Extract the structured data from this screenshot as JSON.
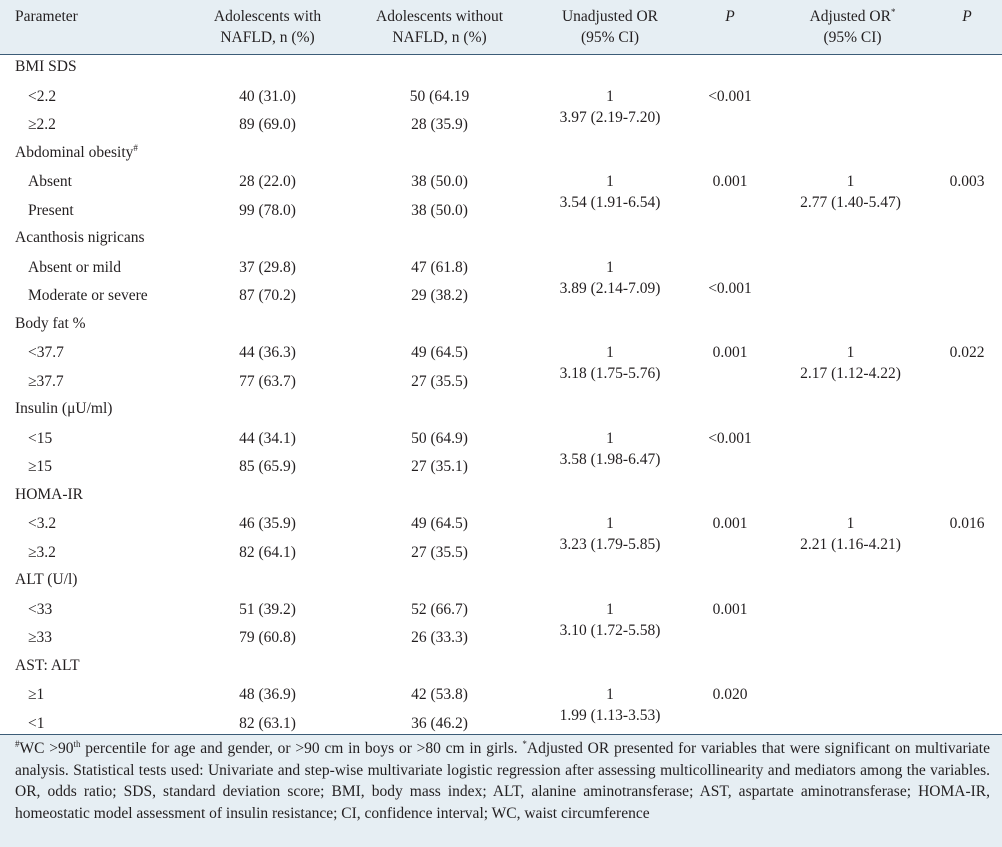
{
  "headers": {
    "parameter": "Parameter",
    "with_nafld": "Adolescents with",
    "with_nafld_2": "NAFLD, n (%)",
    "without_nafld": "Adolescents without",
    "without_nafld_2": "NAFLD, n (%)",
    "unadj": "Unadjusted OR",
    "unadj_2": "(95% CI)",
    "p": "P",
    "adj": "Adjusted OR",
    "adj_mark": "*",
    "adj_2": "(95% CI)",
    "p2": "P"
  },
  "groups": [
    {
      "label": "BMI SDS",
      "mark": "",
      "rows": [
        {
          "label": "<2.2",
          "with": "40 (31.0)",
          "without": "50 (64.19",
          "unadj_ref": "1",
          "unadj_val": "3.97 (2.19-7.20)",
          "p": "<0.001",
          "adj_ref": "",
          "adj_val": "",
          "p2": ""
        },
        {
          "label": "≥2.2",
          "with": "89 (69.0)",
          "without": "28 (35.9)"
        }
      ]
    },
    {
      "label": "Abdominal obesity",
      "mark": "#",
      "rows": [
        {
          "label": "Absent",
          "with": "28 (22.0)",
          "without": "38 (50.0)",
          "unadj_ref": "1",
          "unadj_val": "3.54 (1.91-6.54)",
          "p": "0.001",
          "adj_ref": "1",
          "adj_val": "2.77 (1.40-5.47)",
          "p2": "0.003"
        },
        {
          "label": "Present",
          "with": "99 (78.0)",
          "without": "38 (50.0)"
        }
      ]
    },
    {
      "label": "Acanthosis nigricans",
      "mark": "",
      "rows": [
        {
          "label": "Absent or mild",
          "with": "37 (29.8)",
          "without": "47 (61.8)",
          "unadj_ref": "1",
          "unadj_val": "3.89 (2.14-7.09)",
          "p": "<0.001",
          "adj_ref": "",
          "adj_val": "",
          "p2": ""
        },
        {
          "label": "Moderate or severe",
          "with": "87 (70.2)",
          "without": "29 (38.2)"
        }
      ]
    },
    {
      "label": "Body fat %",
      "mark": "",
      "rows": [
        {
          "label": "<37.7",
          "with": "44 (36.3)",
          "without": "49 (64.5)",
          "unadj_ref": "1",
          "unadj_val": "3.18 (1.75-5.76)",
          "p": "0.001",
          "adj_ref": "1",
          "adj_val": "2.17 (1.12-4.22)",
          "p2": "0.022"
        },
        {
          "label": "≥37.7",
          "with": "77 (63.7)",
          "without": "27 (35.5)"
        }
      ]
    },
    {
      "label": "Insulin (μU/ml)",
      "mark": "",
      "rows": [
        {
          "label": "<15",
          "with": "44 (34.1)",
          "without": "50 (64.9)",
          "unadj_ref": "1",
          "unadj_val": "3.58 (1.98-6.47)",
          "p": "<0.001",
          "adj_ref": "",
          "adj_val": "",
          "p2": ""
        },
        {
          "label": "≥15",
          "with": "85 (65.9)",
          "without": "27 (35.1)"
        }
      ]
    },
    {
      "label": "HOMA-IR",
      "mark": "",
      "rows": [
        {
          "label": "<3.2",
          "with": "46 (35.9)",
          "without": "49 (64.5)",
          "unadj_ref": "1",
          "unadj_val": "3.23 (1.79-5.85)",
          "p": "0.001",
          "adj_ref": "1",
          "adj_val": "2.21 (1.16-4.21)",
          "p2": "0.016"
        },
        {
          "label": "≥3.2",
          "with": "82 (64.1)",
          "without": "27 (35.5)"
        }
      ]
    },
    {
      "label": "ALT (U/l)",
      "mark": "",
      "rows": [
        {
          "label": "<33",
          "with": "51 (39.2)",
          "without": "52 (66.7)",
          "unadj_ref": "1",
          "unadj_val": "3.10 (1.72-5.58)",
          "p": "0.001",
          "adj_ref": "",
          "adj_val": "",
          "p2": ""
        },
        {
          "label": "≥33",
          "with": "79 (60.8)",
          "without": "26 (33.3)"
        }
      ]
    },
    {
      "label": "AST: ALT",
      "mark": "",
      "rows": [
        {
          "label": "≥1",
          "with": "48 (36.9)",
          "without": "42 (53.8)",
          "unadj_ref": "1",
          "unadj_val": "1.99 (1.13-3.53)",
          "p": "0.020",
          "adj_ref": "",
          "adj_val": "",
          "p2": ""
        },
        {
          "label": "<1",
          "with": "82 (63.1)",
          "without": "36 (46.2)"
        }
      ]
    }
  ],
  "footnote": {
    "mark1": "#",
    "text1a": "WC >90",
    "text1_sup": "th",
    "text1b": " percentile for age and gender, or >90 cm in boys or >80 cm in girls. ",
    "mark2": "*",
    "text2": "Adjusted OR presented for variables that were significant on multivariate analysis. Statistical tests used: Univariate and step-wise multivariate logistic regression after assessing multicollinearity and mediators among the variables. OR, odds ratio; SDS, standard deviation score; BMI, body mass index; ALT, alanine aminotransferase; AST, aspartate aminotransferase; HOMA-IR, homeostatic model assessment of insulin resistance; CI, confidence interval; WC, waist circumference"
  }
}
